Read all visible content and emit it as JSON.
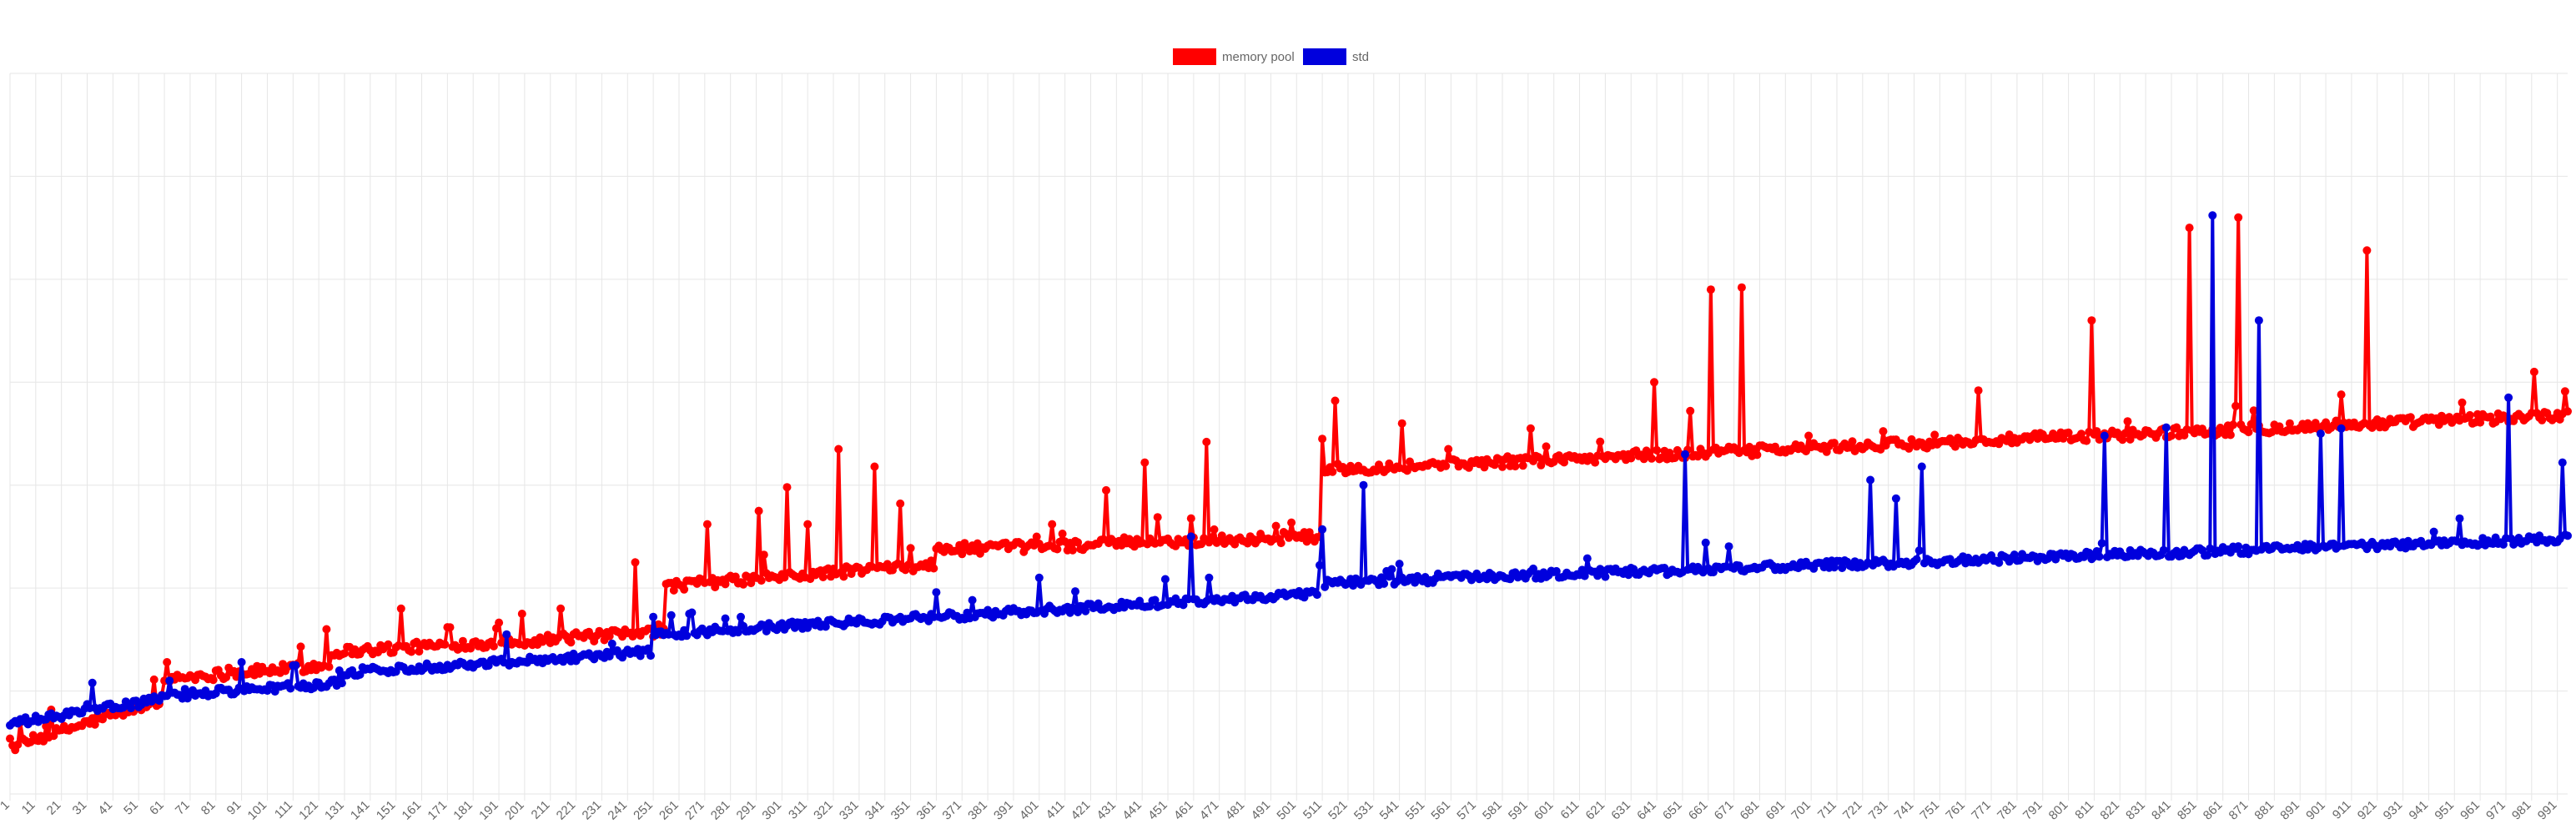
{
  "chart_data": {
    "type": "line",
    "title": "",
    "xlabel": "",
    "ylabel": "",
    "x_start": 1,
    "x_end": 995,
    "x_tick_step": 10,
    "ylim": [
      0,
      7
    ],
    "y_tick_labels_shown": false,
    "grid": true,
    "legend_position": "top",
    "series": [
      {
        "name": "memory pool",
        "color": "#ff0000",
        "baseline_segments": [
          {
            "from": 1,
            "to": 60,
            "start": 0.45,
            "end": 0.92
          },
          {
            "from": 61,
            "to": 125,
            "start": 1.12,
            "end": 1.25
          },
          {
            "from": 126,
            "to": 255,
            "start": 1.38,
            "end": 1.57
          },
          {
            "from": 256,
            "to": 360,
            "start": 2.02,
            "end": 2.23
          },
          {
            "from": 361,
            "to": 510,
            "start": 2.37,
            "end": 2.5
          },
          {
            "from": 511,
            "to": 995,
            "start": 3.15,
            "end": 3.68
          }
        ],
        "spikes": [
          {
            "x": 62,
            "y": 1.28
          },
          {
            "x": 124,
            "y": 1.6
          },
          {
            "x": 153,
            "y": 1.8
          },
          {
            "x": 200,
            "y": 1.75
          },
          {
            "x": 215,
            "y": 1.8
          },
          {
            "x": 244,
            "y": 2.25
          },
          {
            "x": 272,
            "y": 2.62
          },
          {
            "x": 292,
            "y": 2.75
          },
          {
            "x": 303,
            "y": 2.98
          },
          {
            "x": 311,
            "y": 2.62
          },
          {
            "x": 323,
            "y": 3.35
          },
          {
            "x": 337,
            "y": 3.18
          },
          {
            "x": 347,
            "y": 2.82
          },
          {
            "x": 406,
            "y": 2.62
          },
          {
            "x": 427,
            "y": 2.95
          },
          {
            "x": 442,
            "y": 3.22
          },
          {
            "x": 466,
            "y": 3.42
          },
          {
            "x": 511,
            "y": 3.45
          },
          {
            "x": 516,
            "y": 3.82
          },
          {
            "x": 542,
            "y": 3.6
          },
          {
            "x": 560,
            "y": 3.35
          },
          {
            "x": 592,
            "y": 3.55
          },
          {
            "x": 617,
            "y": 3.22
          },
          {
            "x": 640,
            "y": 4.0
          },
          {
            "x": 654,
            "y": 3.72
          },
          {
            "x": 662,
            "y": 4.9
          },
          {
            "x": 674,
            "y": 4.92
          },
          {
            "x": 700,
            "y": 3.48
          },
          {
            "x": 766,
            "y": 3.92
          },
          {
            "x": 810,
            "y": 4.6
          },
          {
            "x": 848,
            "y": 5.5
          },
          {
            "x": 867,
            "y": 5.6
          },
          {
            "x": 887,
            "y": 3.6
          },
          {
            "x": 907,
            "y": 3.88
          },
          {
            "x": 917,
            "y": 5.28
          },
          {
            "x": 982,
            "y": 4.1
          }
        ],
        "noise": 0.05
      },
      {
        "name": "std",
        "color": "#0000dd",
        "baseline_segments": [
          {
            "from": 1,
            "to": 60,
            "start": 0.68,
            "end": 0.92
          },
          {
            "from": 61,
            "to": 130,
            "start": 0.95,
            "end": 1.08
          },
          {
            "from": 131,
            "to": 250,
            "start": 1.18,
            "end": 1.38
          },
          {
            "from": 251,
            "to": 510,
            "start": 1.55,
            "end": 1.95
          },
          {
            "from": 511,
            "to": 995,
            "start": 2.05,
            "end": 2.48
          }
        ],
        "spikes": [
          {
            "x": 91,
            "y": 1.28
          },
          {
            "x": 194,
            "y": 1.55
          },
          {
            "x": 251,
            "y": 1.72
          },
          {
            "x": 265,
            "y": 1.75
          },
          {
            "x": 401,
            "y": 2.1
          },
          {
            "x": 460,
            "y": 2.5
          },
          {
            "x": 467,
            "y": 2.1
          },
          {
            "x": 511,
            "y": 2.57
          },
          {
            "x": 527,
            "y": 3.0
          },
          {
            "x": 652,
            "y": 3.3
          },
          {
            "x": 724,
            "y": 3.05
          },
          {
            "x": 734,
            "y": 2.87
          },
          {
            "x": 744,
            "y": 3.18
          },
          {
            "x": 815,
            "y": 3.48
          },
          {
            "x": 839,
            "y": 3.56
          },
          {
            "x": 857,
            "y": 5.62
          },
          {
            "x": 875,
            "y": 4.6
          },
          {
            "x": 899,
            "y": 3.5
          },
          {
            "x": 907,
            "y": 3.55
          },
          {
            "x": 972,
            "y": 3.85
          },
          {
            "x": 993,
            "y": 3.22
          }
        ],
        "noise": 0.04
      }
    ]
  }
}
